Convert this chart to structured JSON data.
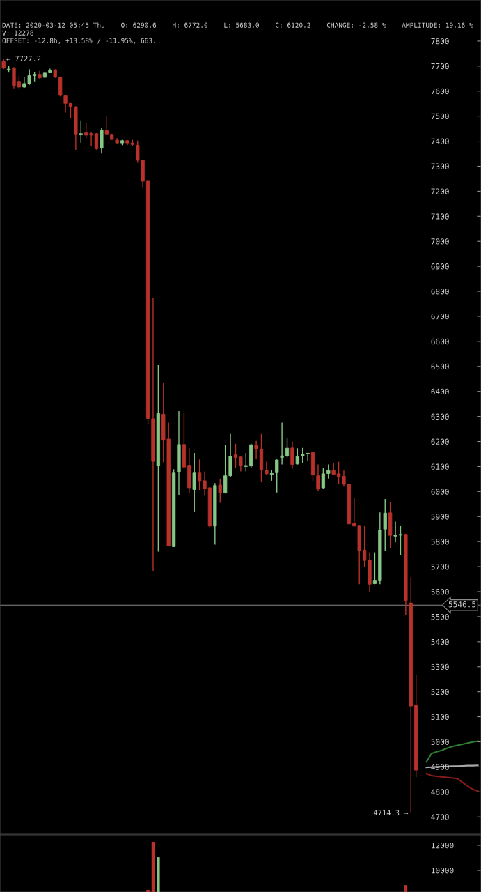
{
  "chart_data": [
    {
      "type": "candlestick",
      "annotations": [
        "DATE: 2020-03-12 05:45 Thu    O: 6290.6    H: 6772.0    L: 5683.0    C: 6120.2    CHANGE: -2.58 %    AMPLITUDE: 19.16 %",
        "V: 12278",
        "OFFSET: -12.8h, +13.58% / -11.95%, 663.",
        "← 7727.2",
        "4714.3 →"
      ],
      "categories": [
        null,
        null,
        null,
        null,
        null,
        null,
        null,
        null,
        null,
        null,
        null,
        null,
        null,
        null,
        null,
        null,
        null,
        null,
        null,
        null,
        null,
        null,
        null,
        null,
        null,
        null,
        null,
        null,
        null,
        null,
        null,
        null,
        null,
        null,
        null,
        null,
        null,
        null,
        null,
        null,
        null,
        null,
        null,
        null,
        null,
        null,
        null,
        null,
        null,
        null,
        null,
        null,
        null,
        null,
        null,
        null,
        null,
        null,
        null,
        null,
        null,
        null,
        null,
        null,
        null,
        null,
        null,
        null,
        null,
        null,
        null,
        null,
        null,
        null,
        null,
        null,
        null,
        null,
        null,
        null,
        null,
        null,
        null,
        null,
        null,
        null,
        null,
        null,
        null,
        null,
        null,
        null,
        null
      ],
      "ohlc": [
        [
          7718,
          7727.2,
          7688,
          7692
        ],
        [
          7684,
          7700,
          7674,
          7688
        ],
        [
          7693,
          7695,
          7611,
          7622
        ],
        [
          7639,
          7659,
          7611,
          7616
        ],
        [
          7616,
          7656,
          7613,
          7630
        ],
        [
          7630,
          7687,
          7625,
          7662
        ],
        [
          7662,
          7676,
          7639,
          7667
        ],
        [
          7667,
          7681,
          7648,
          7653
        ],
        [
          7655,
          7678,
          7653,
          7672
        ],
        [
          7673,
          7690,
          7672,
          7682
        ],
        [
          7685,
          7687,
          7653,
          7656
        ],
        [
          7656,
          7658,
          7579,
          7583
        ],
        [
          7581,
          7583,
          7514,
          7551
        ],
        [
          7551,
          7552,
          7491,
          7537
        ],
        [
          7537,
          7540,
          7365,
          7426
        ],
        [
          7425,
          7483,
          7393,
          7430
        ],
        [
          7433,
          7472,
          7412,
          7424
        ],
        [
          7430,
          7435,
          7379,
          7424
        ],
        [
          7430,
          7432,
          7366,
          7370
        ],
        [
          7372,
          7452,
          7351,
          7444
        ],
        [
          7442,
          7502,
          7424,
          7426
        ],
        [
          7424,
          7430,
          7405,
          7407
        ],
        [
          7404,
          7412,
          7388,
          7393
        ],
        [
          7393,
          7405,
          7384,
          7402
        ],
        [
          7402,
          7405,
          7384,
          7393
        ],
        [
          7393,
          7405,
          7381,
          7387
        ],
        [
          7384,
          7402,
          7314,
          7324
        ],
        [
          7324,
          7326,
          7214,
          7240
        ],
        [
          7240,
          7242,
          6270,
          6292
        ],
        [
          6290.6,
          6772.0,
          5683.0,
          6120.2
        ],
        [
          6103,
          6505,
          5760,
          6312
        ],
        [
          6309,
          6433,
          6117,
          6205
        ],
        [
          6210,
          6275,
          5783,
          5783
        ],
        [
          5780,
          6089,
          5778,
          6074
        ],
        [
          6079,
          6321,
          5987,
          6188
        ],
        [
          6188,
          6317,
          6094,
          6098
        ],
        [
          6105,
          6173,
          5992,
          6015
        ],
        [
          6008,
          6154,
          5918,
          6074
        ],
        [
          6074,
          6128,
          6006,
          6043
        ],
        [
          6043,
          6080,
          5983,
          6012
        ],
        [
          6015,
          6018,
          5857,
          5862
        ],
        [
          5862,
          6034,
          5788,
          6024
        ],
        [
          6026,
          6052,
          5955,
          5996
        ],
        [
          5996,
          6187,
          5992,
          6063
        ],
        [
          6063,
          6230,
          6057,
          6140
        ],
        [
          6147,
          6191,
          6094,
          6136
        ],
        [
          6138,
          6140,
          6080,
          6103
        ],
        [
          6100,
          6154,
          6080,
          6104
        ],
        [
          6102,
          6191,
          6094,
          6187
        ],
        [
          6184,
          6202,
          6131,
          6171
        ],
        [
          6170,
          6230,
          6038,
          6086
        ],
        [
          6085,
          6119,
          6066,
          6071
        ],
        [
          6069,
          6085,
          6043,
          6072
        ],
        [
          6075,
          6128,
          5996,
          6126
        ],
        [
          6136,
          6275,
          6108,
          6143
        ],
        [
          6143,
          6214,
          6136,
          6173
        ],
        [
          6174,
          6200,
          6091,
          6108
        ],
        [
          6110,
          6173,
          6108,
          6140
        ],
        [
          6143,
          6174,
          6112,
          6149
        ],
        [
          6151,
          6154,
          6122,
          6153
        ],
        [
          6156,
          6158,
          6043,
          6066
        ],
        [
          6063,
          6108,
          6001,
          6010
        ],
        [
          6015,
          6094,
          6010,
          6071
        ],
        [
          6072,
          6108,
          6052,
          6084
        ],
        [
          6084,
          6114,
          6066,
          6069
        ],
        [
          6071,
          6119,
          6029,
          6059
        ],
        [
          6061,
          6084,
          6020,
          6029
        ],
        [
          6029,
          6031,
          5866,
          5871
        ],
        [
          5874,
          5973,
          5862,
          5862
        ],
        [
          5862,
          5865,
          5630,
          5764
        ],
        [
          5766,
          5862,
          5699,
          5725
        ],
        [
          5725,
          5757,
          5597,
          5630
        ],
        [
          5632,
          5757,
          5630,
          5643
        ],
        [
          5643,
          5917,
          5630,
          5846
        ],
        [
          5850,
          5970,
          5762,
          5914
        ],
        [
          5915,
          5959,
          5774,
          5825
        ],
        [
          5822,
          5880,
          5797,
          5826
        ],
        [
          5826,
          5862,
          5746,
          5829
        ],
        [
          5829,
          5832,
          5505,
          5565
        ],
        [
          5555,
          5658,
          4714.3,
          5143
        ],
        [
          5146,
          5268,
          4859,
          4887
        ],
        null,
        null,
        null,
        null,
        null,
        null,
        null,
        null,
        null,
        null,
        null,
        null
      ],
      "colors": [
        "#b8322b",
        "#86c786",
        "#b8322b",
        "#b8322b",
        "#86c786",
        "#86c786",
        "#86c786",
        "#b8322b",
        "#86c786",
        "#86c786",
        "#b8322b",
        "#b8322b",
        "#b8322b",
        "#b8322b",
        "#b8322b",
        "#86c786",
        "#b8322b",
        "#b8322b",
        "#b8322b",
        "#86c786",
        "#b8322b",
        "#b8322b",
        "#b8322b",
        "#86c786",
        "#b8322b",
        "#b8322b",
        "#b8322b",
        "#b8322b",
        "#b8322b",
        "#b8322b",
        "#86c786",
        "#b8322b",
        "#b8322b",
        "#86c786",
        "#86c786",
        "#b8322b",
        "#b8322b",
        "#86c786",
        "#b8322b",
        "#b8322b",
        "#b8322b",
        "#86c786",
        "#b8322b",
        "#86c786",
        "#86c786",
        "#b8322b",
        "#b8322b",
        "#86c786",
        "#86c786",
        "#b8322b",
        "#b8322b",
        "#b8322b",
        "#86c786",
        "#86c786",
        "#86c786",
        "#86c786",
        "#b8322b",
        "#86c786",
        "#86c786",
        "#86c786",
        "#b8322b",
        "#b8322b",
        "#86c786",
        "#86c786",
        "#b8322b",
        "#b8322b",
        "#b8322b",
        "#b8322b",
        "#b8322b",
        "#b8322b",
        "#b8322b",
        "#b8322b",
        "#86c786",
        "#86c786",
        "#86c786",
        "#b8322b",
        "#86c786",
        "#86c786",
        "#b8322b",
        "#b8322b",
        "#b8322b",
        null,
        null,
        null,
        null,
        null,
        null,
        null,
        null,
        null,
        null,
        null,
        null
      ],
      "series": [
        {
          "type": "line",
          "color": "#2e7d32",
          "values": [
            null,
            null,
            null,
            null,
            null,
            null,
            null,
            null,
            null,
            null,
            null,
            null,
            null,
            null,
            null,
            null,
            null,
            null,
            null,
            null,
            null,
            null,
            null,
            null,
            null,
            null,
            null,
            null,
            null,
            null,
            null,
            null,
            null,
            null,
            null,
            null,
            null,
            null,
            null,
            null,
            null,
            null,
            null,
            null,
            null,
            null,
            null,
            null,
            null,
            null,
            null,
            null,
            null,
            null,
            null,
            null,
            null,
            null,
            null,
            null,
            null,
            null,
            null,
            null,
            null,
            null,
            null,
            null,
            null,
            null,
            null,
            null,
            null,
            null,
            null,
            null,
            null,
            null,
            null,
            null,
            null,
            null,
            4920,
            4953,
            4960,
            4966,
            4974,
            4981,
            4986,
            4990,
            4995,
            4999,
            5003
          ]
        },
        {
          "type": "line",
          "color": "#aaaaaa",
          "values": [
            null,
            null,
            null,
            null,
            null,
            null,
            null,
            null,
            null,
            null,
            null,
            null,
            null,
            null,
            null,
            null,
            null,
            null,
            null,
            null,
            null,
            null,
            null,
            null,
            null,
            null,
            null,
            null,
            null,
            null,
            null,
            null,
            null,
            null,
            null,
            null,
            null,
            null,
            null,
            null,
            null,
            null,
            null,
            null,
            null,
            null,
            null,
            null,
            null,
            null,
            null,
            null,
            null,
            null,
            null,
            null,
            null,
            null,
            null,
            null,
            null,
            null,
            null,
            null,
            null,
            null,
            null,
            null,
            null,
            null,
            null,
            null,
            null,
            null,
            null,
            null,
            null,
            null,
            null,
            null,
            null,
            null,
            4898,
            4899,
            4900,
            4901,
            4902,
            4903,
            4903,
            4904,
            4905,
            4905,
            4906
          ]
        },
        {
          "type": "line",
          "color": "#8b1a1a",
          "values": [
            null,
            null,
            null,
            null,
            null,
            null,
            null,
            null,
            null,
            null,
            null,
            null,
            null,
            null,
            null,
            null,
            null,
            null,
            null,
            null,
            null,
            null,
            null,
            null,
            null,
            null,
            null,
            null,
            null,
            null,
            null,
            null,
            null,
            null,
            null,
            null,
            null,
            null,
            null,
            null,
            null,
            null,
            null,
            null,
            null,
            null,
            null,
            null,
            null,
            null,
            null,
            null,
            null,
            null,
            null,
            null,
            null,
            null,
            null,
            null,
            null,
            null,
            null,
            null,
            null,
            null,
            null,
            null,
            null,
            null,
            null,
            null,
            null,
            null,
            null,
            null,
            null,
            null,
            null,
            null,
            null,
            null,
            4873,
            4865,
            4862,
            4860,
            4858,
            4856,
            4853,
            4838,
            4823,
            4810,
            4803
          ]
        }
      ],
      "ref_lines": [
        {
          "axis": "y",
          "value": 5546.5,
          "label": "5546.5",
          "color": "#888888"
        }
      ],
      "ylim": [
        4631,
        7964
      ],
      "yticks": [
        4700,
        4800,
        4900,
        5000,
        5100,
        5200,
        5300,
        5400,
        5500,
        5600,
        5700,
        5800,
        5900,
        6000,
        6100,
        6200,
        6300,
        6400,
        6500,
        6600,
        6700,
        6800,
        6900,
        7000,
        7100,
        7200,
        7300,
        7400,
        7500,
        7600,
        7700,
        7800
      ],
      "tick_labels": "y"
    },
    {
      "type": "bar",
      "categories": [
        null,
        null,
        null,
        null,
        null,
        null,
        null,
        null,
        null,
        null,
        null,
        null,
        null,
        null,
        null,
        null,
        null,
        null,
        null,
        null,
        null,
        null,
        null,
        null,
        null,
        null,
        null,
        null,
        null,
        null,
        null,
        null,
        null,
        null,
        null,
        null,
        null,
        null,
        null,
        null,
        null,
        null,
        null,
        null,
        null,
        null,
        null,
        null,
        null,
        null,
        null,
        null,
        null,
        null,
        null,
        null,
        null,
        null,
        null,
        null,
        null,
        null,
        null,
        null,
        null,
        null,
        null,
        null,
        null,
        null,
        null,
        null,
        null,
        null,
        null,
        null,
        null,
        null,
        null,
        null,
        null,
        null,
        null,
        null,
        null,
        null,
        null,
        null,
        null,
        null,
        null,
        null,
        null
      ],
      "values": [
        null,
        null,
        null,
        null,
        null,
        null,
        null,
        null,
        null,
        null,
        null,
        null,
        null,
        null,
        null,
        null,
        null,
        null,
        null,
        null,
        null,
        null,
        null,
        null,
        null,
        null,
        null,
        null,
        8450,
        12278,
        11050,
        null,
        null,
        null,
        null,
        null,
        null,
        null,
        null,
        null,
        null,
        null,
        null,
        null,
        null,
        null,
        null,
        null,
        null,
        null,
        null,
        null,
        null,
        null,
        null,
        null,
        null,
        null,
        null,
        null,
        null,
        null,
        null,
        null,
        null,
        null,
        null,
        null,
        null,
        null,
        null,
        null,
        null,
        null,
        null,
        null,
        null,
        null,
        8830,
        null,
        null,
        null,
        null,
        null,
        null,
        null,
        null,
        null,
        null,
        null,
        null,
        null,
        null
      ],
      "colors": [
        null,
        null,
        null,
        null,
        null,
        null,
        null,
        null,
        null,
        null,
        null,
        null,
        null,
        null,
        null,
        null,
        null,
        null,
        null,
        null,
        null,
        null,
        null,
        null,
        null,
        null,
        null,
        null,
        "#b8322b",
        "#b8322b",
        "#86c786",
        null,
        null,
        null,
        null,
        null,
        null,
        null,
        null,
        null,
        null,
        null,
        null,
        null,
        null,
        null,
        null,
        null,
        null,
        null,
        null,
        null,
        null,
        null,
        null,
        null,
        null,
        null,
        null,
        null,
        null,
        null,
        null,
        null,
        null,
        null,
        null,
        null,
        null,
        null,
        null,
        null,
        null,
        null,
        null,
        null,
        null,
        null,
        "#b8322b",
        null,
        null,
        null,
        null,
        null,
        null,
        null,
        null,
        null,
        null,
        null,
        null,
        null,
        null
      ],
      "ylim": [
        8280,
        12830
      ],
      "yticks": [
        10000,
        12000
      ],
      "tick_labels": "y"
    }
  ]
}
